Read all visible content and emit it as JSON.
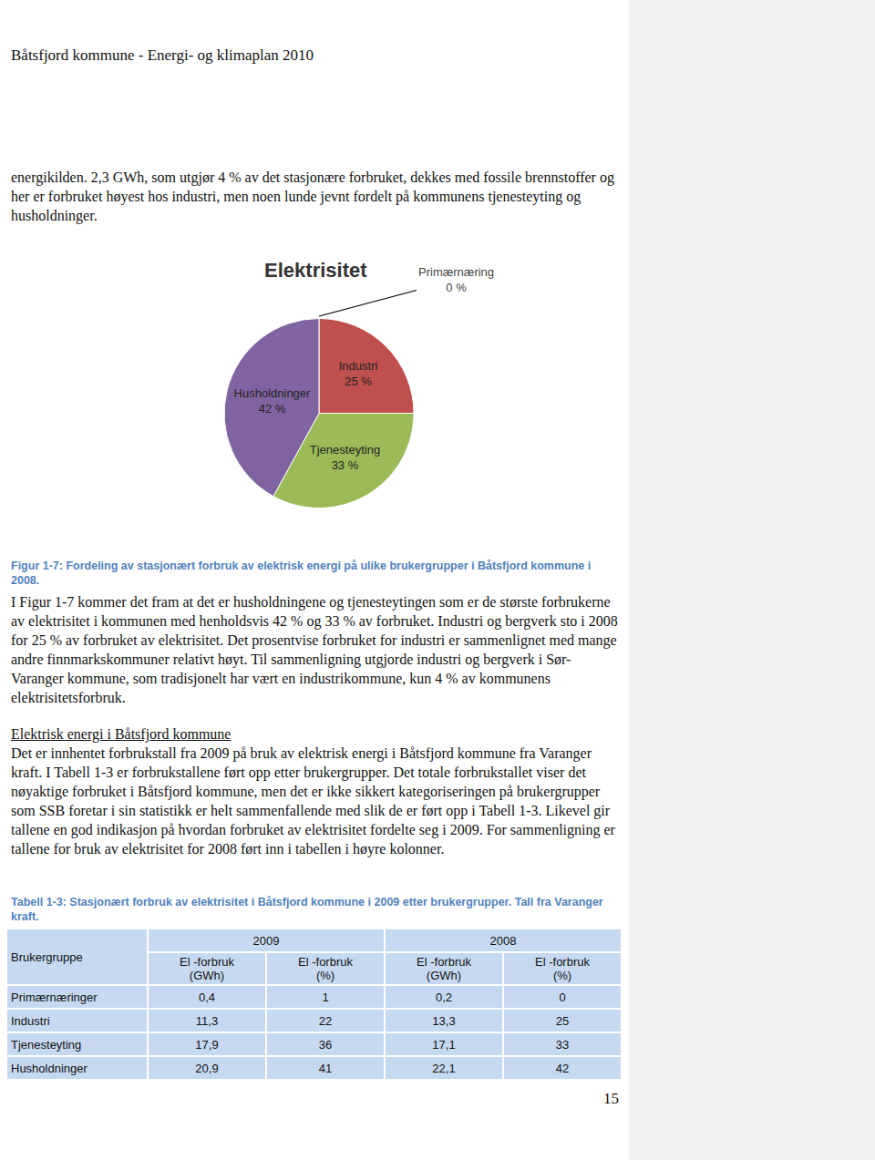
{
  "header": "Båtsfjord kommune - Energi- og klimaplan 2010",
  "paragraphs_top": [
    "energikilden. 2,3 GWh, som utgjør 4 % av det stasjonære forbruket, dekkes med fossile brennstoffer og her er forbruket høyest hos industri, men noen lunde jevnt fordelt på kommunens tjenesteyting og husholdninger."
  ],
  "chart_data": {
    "type": "pie",
    "title": "Elektrisitet",
    "categories": [
      "Primærnæring",
      "Industri",
      "Tjenesteyting",
      "Husholdninger"
    ],
    "values": [
      0,
      25,
      33,
      42
    ],
    "value_labels": [
      "0 %",
      "25 %",
      "33 %",
      "42 %"
    ],
    "colors": [
      "#4f81bd",
      "#c0504d",
      "#9bbb59",
      "#8064a2"
    ],
    "data_labels": true
  },
  "figure_caption": "Figur 1-7: Fordeling av stasjonært forbruk av elektrisk energi på ulike brukergrupper i Båtsfjord kommune i 2008.",
  "paragraphs_middle": [
    "I Figur 1-7 kommer det fram at det er husholdningene og tjenesteytingen som er de største forbrukerne av elektrisitet i kommunen med henholdsvis 42 % og 33 % av forbruket. Industri og bergverk sto i 2008 for 25 % av forbruket av elektrisitet. Det prosentvise forbruket for industri er sammenlignet med mange andre finnmarkskommuner relativt høyt. Til sammenligning utgjorde industri og bergverk i Sør-Varanger kommune, som tradisjonelt har vært en industrikommune, kun 4 % av kommunens elektrisitetsforbruk."
  ],
  "section_heading": "Elektrisk energi i Båtsfjord kommune",
  "paragraphs_section": [
    "Det er innhentet forbrukstall fra 2009 på bruk av elektrisk energi i Båtsfjord kommune fra Varanger kraft. I Tabell 1-3 er forbrukstallene ført opp etter brukergrupper. Det totale forbrukstallet viser det nøyaktige forbruket i Båtsfjord kommune, men det er ikke sikkert kategoriseringen på brukergrupper som SSB foretar i sin statistikk er helt sammenfallende med slik de er ført opp i Tabell 1-3. Likevel gir tallene en god indikasjon på hvordan forbruket av elektrisitet fordelte seg i 2009. For sammenligning er tallene for bruk av elektrisitet for 2008 ført inn i tabellen i høyre kolonner."
  ],
  "table_caption": "Tabell 1-3: Stasjonært forbruk av elektrisitet i Båtsfjord kommune i 2009 etter brukergrupper. Tall fra Varanger kraft.",
  "table": {
    "header": {
      "group": "Brukergruppe",
      "years": [
        {
          "year": "2009",
          "columns": [
            [
              "El -forbruk",
              "(GWh)"
            ],
            [
              "El -forbruk",
              "(%)"
            ]
          ]
        },
        {
          "year": "2008",
          "columns": [
            [
              "El -forbruk",
              "(GWh)"
            ],
            [
              "El -forbruk",
              "(%)"
            ]
          ]
        }
      ]
    },
    "rows": [
      [
        "Primærnæringer",
        "0,4",
        "1",
        "0,2",
        "0"
      ],
      [
        "Industri",
        "11,3",
        "22",
        "13,3",
        "25"
      ],
      [
        "Tjenesteyting",
        "17,9",
        "36",
        "17,1",
        "33"
      ],
      [
        "Husholdninger",
        "20,9",
        "41",
        "22,1",
        "42"
      ]
    ]
  },
  "page_number": "15"
}
